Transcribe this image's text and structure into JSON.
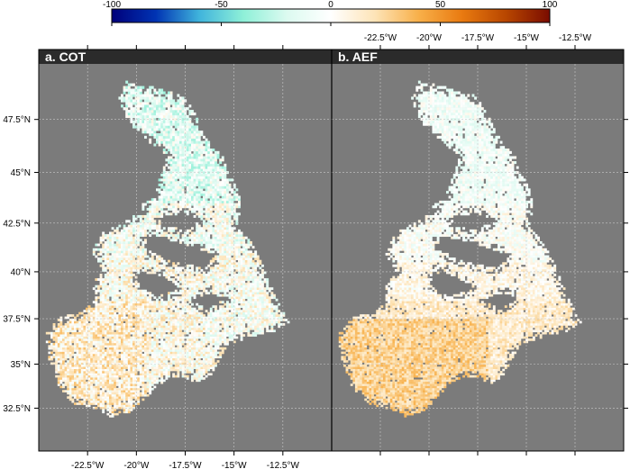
{
  "chart_data": [
    {
      "type": "heatmap",
      "panel_title": "a. COT",
      "title": "COT",
      "panel_letter": "a",
      "projection": "mercator",
      "lon_range": [
        -25.0,
        -10.0
      ],
      "lat_range": [
        30.0,
        50.0
      ],
      "lon_ticks": [
        -22.5,
        -20,
        -17.5,
        -15,
        -12.5
      ],
      "lon_tick_labels": [
        "-22.5°W",
        "-20°W",
        "-17.5°W",
        "-15°W",
        "-12.5°W"
      ],
      "lon_tick_labels_position": "bottom",
      "lat_ticks": [
        32.5,
        35,
        37.5,
        40,
        42.5,
        45,
        47.5
      ],
      "lat_tick_labels": [
        "32.5°N",
        "35°N",
        "37.5°N",
        "40°N",
        "42.5°N",
        "45°N",
        "47.5°N"
      ],
      "lat_tick_labels_position": "left",
      "grid": true,
      "background_color": "#7b7b7b",
      "data_summary": "Gridded percentage values, mostly between -20 and +30; slightly negative (cyan) in the northern lobe, mixed positive (orange) in the south-west."
    },
    {
      "type": "heatmap",
      "panel_title": "b. AEF",
      "title": "AEF",
      "panel_letter": "b",
      "projection": "mercator",
      "lon_range": [
        -25.0,
        -10.0
      ],
      "lat_range": [
        30.0,
        50.0
      ],
      "lon_ticks": [
        -22.5,
        -20,
        -17.5,
        -15,
        -12.5
      ],
      "lon_tick_labels": [
        "-22.5°W",
        "-20°W",
        "-17.5°W",
        "-15°W",
        "-12.5°W"
      ],
      "lon_tick_labels_position": "top",
      "lat_ticks": [
        32.5,
        35,
        37.5,
        40,
        42.5,
        45,
        47.5
      ],
      "lat_tick_labels": [],
      "grid": true,
      "background_color": "#7b7b7b",
      "data_summary": "Gridded percentage values; near-zero to slightly negative (pale cyan) in the north, positive (orange, up to ~40) in the south-west."
    }
  ],
  "colorbar": {
    "orientation": "horizontal",
    "position": "top",
    "min": -100,
    "max": 100,
    "ticks": [
      -100,
      -50,
      0,
      50,
      100
    ],
    "tick_labels": [
      "-100",
      "-50",
      "0",
      "50",
      "100"
    ],
    "colors": [
      "#00007a",
      "#0033b3",
      "#40b4dc",
      "#8ef0d8",
      "#dcfaf0",
      "#ffffff",
      "#fde4b8",
      "#f8b04a",
      "#e97a10",
      "#b84600",
      "#7a0c00"
    ]
  }
}
